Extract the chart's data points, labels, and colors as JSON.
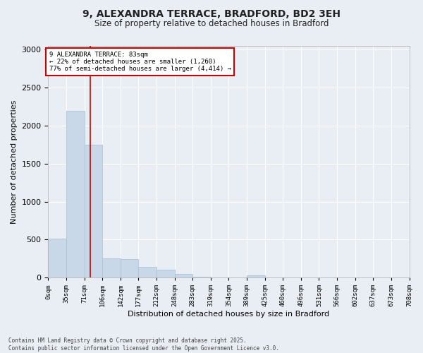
{
  "title_line1": "9, ALEXANDRA TERRACE, BRADFORD, BD2 3EH",
  "title_line2": "Size of property relative to detached houses in Bradford",
  "xlabel": "Distribution of detached houses by size in Bradford",
  "ylabel": "Number of detached properties",
  "bar_color": "#c8d8e8",
  "bar_edge_color": "#a8bece",
  "bg_color": "#e8eef4",
  "grid_color": "#ffffff",
  "fig_bg_color": "#e8eef4",
  "vline_color": "#cc0000",
  "vline_x": 83,
  "annotation_text": "9 ALEXANDRA TERRACE: 83sqm\n← 22% of detached houses are smaller (1,260)\n77% of semi-detached houses are larger (4,414) →",
  "annotation_box_color": "#cc0000",
  "footnote1": "Contains HM Land Registry data © Crown copyright and database right 2025.",
  "footnote2": "Contains public sector information licensed under the Open Government Licence v3.0.",
  "bins": [
    0,
    35,
    71,
    106,
    142,
    177,
    212,
    248,
    283,
    319,
    354,
    389,
    425,
    460,
    496,
    531,
    566,
    602,
    637,
    673,
    708
  ],
  "bin_labels": [
    "0sqm",
    "35sqm",
    "71sqm",
    "106sqm",
    "142sqm",
    "177sqm",
    "212sqm",
    "248sqm",
    "283sqm",
    "319sqm",
    "354sqm",
    "389sqm",
    "425sqm",
    "460sqm",
    "496sqm",
    "531sqm",
    "566sqm",
    "602sqm",
    "637sqm",
    "673sqm",
    "708sqm"
  ],
  "bar_heights": [
    510,
    2195,
    1745,
    255,
    245,
    140,
    100,
    50,
    15,
    5,
    0,
    30,
    0,
    0,
    0,
    0,
    0,
    0,
    0,
    0
  ],
  "ylim": [
    0,
    3050
  ],
  "yticks": [
    0,
    500,
    1000,
    1500,
    2000,
    2500,
    3000
  ]
}
